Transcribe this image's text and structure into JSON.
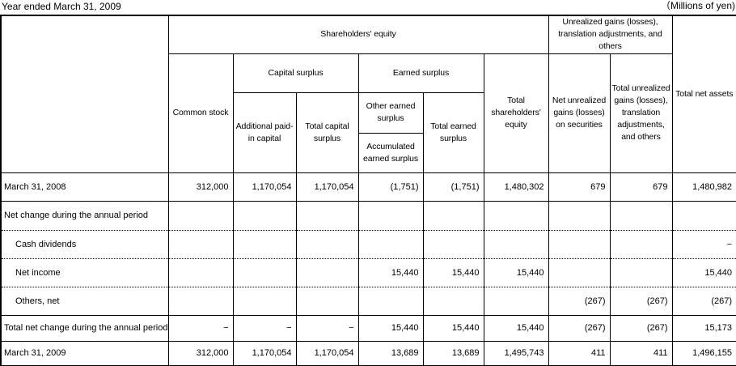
{
  "captions": {
    "left": "Year ended March 31, 2009",
    "right": "（Millions of yen)"
  },
  "table": {
    "header": {
      "shareholders_equity": "Shareholders' equity",
      "unrealized_group": "Unrealized gains (losses), translation adjustments, and others",
      "total_net_assets": "Total net assets",
      "common_stock": "Common stock",
      "capital_surplus": "Capital surplus",
      "earned_surplus": "Earned surplus",
      "additional_paid_in_capital": "Additional paid-in capital",
      "total_capital_surplus": "Total capital surplus",
      "other_earned_surplus": "Other earned surplus",
      "accumulated_earned_surplus": "Accumulated earned surplus",
      "total_earned_surplus": "Total earned surplus",
      "total_shareholders_equity": "Total shareholders' equity",
      "net_unrealized_gains_on_securities": "Net unrealized gains (losses) on securities",
      "total_unrealized_gains": "Total unrealized gains (losses), translation adjustments, and others"
    },
    "rows": [
      {
        "label": "March 31, 2008",
        "indent": false,
        "dotted": false,
        "values": [
          "312,000",
          "1,170,054",
          "1,170,054",
          "(1,751)",
          "(1,751)",
          "1,480,302",
          "679",
          "679",
          "1,480,982"
        ]
      },
      {
        "label": "Net change during the annual period",
        "indent": false,
        "dotted": true,
        "values": [
          "",
          "",
          "",
          "",
          "",
          "",
          "",
          "",
          ""
        ]
      },
      {
        "label": "Cash dividends",
        "indent": true,
        "dotted": true,
        "values": [
          "",
          "",
          "",
          "",
          "",
          "",
          "",
          "",
          "−"
        ]
      },
      {
        "label": "Net income",
        "indent": true,
        "dotted": true,
        "values": [
          "",
          "",
          "",
          "15,440",
          "15,440",
          "15,440",
          "",
          "",
          "15,440"
        ]
      },
      {
        "label": "Others, net",
        "indent": true,
        "dotted": false,
        "values": [
          "",
          "",
          "",
          "",
          "",
          "",
          "(267)",
          "(267)",
          "(267)"
        ]
      },
      {
        "label": "Total net change during the annual period",
        "indent": false,
        "dotted": false,
        "values": [
          "−",
          "−",
          "−",
          "15,440",
          "15,440",
          "15,440",
          "(267)",
          "(267)",
          "15,173"
        ]
      },
      {
        "label": "March 31, 2009",
        "indent": false,
        "dotted": false,
        "values": [
          "312,000",
          "1,170,054",
          "1,170,054",
          "13,689",
          "13,689",
          "1,495,743",
          "411",
          "411",
          "1,496,155"
        ]
      }
    ]
  },
  "colors": {
    "background": "#ffffff",
    "text": "#000000",
    "border": "#000000"
  }
}
